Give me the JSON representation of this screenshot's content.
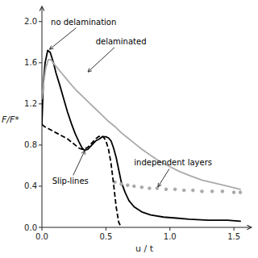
{
  "chart_data": {
    "type": "line",
    "title": "",
    "xlabel": "u / t",
    "ylabel": "F/F*",
    "xlim": [
      0.0,
      1.6
    ],
    "ylim": [
      0.0,
      2.1
    ],
    "xticks": [
      {
        "value": 0.0,
        "label": "0.0"
      },
      0.5,
      {
        "value": 1.0,
        "label": "1.0"
      },
      1.5
    ],
    "yticks": [
      {
        "value": 0.0,
        "label": "0.0"
      },
      0.4,
      0.8,
      1.2,
      1.6,
      {
        "value": 2.0,
        "label": "2.0"
      }
    ],
    "grid": false,
    "background": "#ffffff",
    "series": [
      {
        "color": "#000000",
        "line_style": "solid",
        "x": [
          0.0,
          0.01,
          0.025,
          0.045,
          0.065,
          0.09,
          0.11,
          0.14,
          0.17,
          0.2,
          0.23,
          0.26,
          0.29,
          0.31,
          0.33,
          0.36,
          0.39,
          0.42,
          0.45,
          0.47,
          0.5,
          0.52,
          0.54,
          0.56,
          0.58,
          0.6,
          0.62,
          0.65,
          0.68,
          0.72,
          0.78,
          0.85,
          0.95,
          1.05,
          1.15,
          1.3,
          1.45,
          1.55
        ],
        "values": [
          1.0,
          1.38,
          1.6,
          1.72,
          1.7,
          1.6,
          1.5,
          1.38,
          1.25,
          1.12,
          1.01,
          0.91,
          0.83,
          0.78,
          0.75,
          0.76,
          0.8,
          0.84,
          0.86,
          0.88,
          0.88,
          0.87,
          0.84,
          0.77,
          0.68,
          0.56,
          0.44,
          0.34,
          0.26,
          0.2,
          0.15,
          0.12,
          0.1,
          0.09,
          0.08,
          0.07,
          0.07,
          0.06
        ]
      },
      {
        "color": "#aaaaaa",
        "line_style": "solid",
        "x": [
          0.0,
          0.015,
          0.03,
          0.05,
          0.07,
          0.1,
          0.14,
          0.18,
          0.22,
          0.27,
          0.32,
          0.37,
          0.42,
          0.47,
          0.52,
          0.57,
          0.62,
          0.67,
          0.72,
          0.78,
          0.85,
          0.92,
          1.0,
          1.08,
          1.16,
          1.25,
          1.35,
          1.45,
          1.55
        ],
        "values": [
          1.25,
          1.42,
          1.55,
          1.63,
          1.63,
          1.58,
          1.52,
          1.46,
          1.4,
          1.33,
          1.27,
          1.21,
          1.15,
          1.09,
          1.03,
          0.98,
          0.92,
          0.87,
          0.82,
          0.76,
          0.7,
          0.64,
          0.59,
          0.54,
          0.5,
          0.46,
          0.43,
          0.4,
          0.37
        ]
      },
      {
        "color": "#aaaaaa",
        "line_style": "none",
        "marker": "o",
        "x": [
          0.57,
          0.62,
          0.67,
          0.72,
          0.78,
          0.84,
          0.9,
          0.97,
          1.04,
          1.11,
          1.18,
          1.25,
          1.33,
          1.41,
          1.5,
          1.55
        ],
        "values": [
          0.44,
          0.42,
          0.41,
          0.4,
          0.39,
          0.38,
          0.38,
          0.37,
          0.37,
          0.36,
          0.36,
          0.35,
          0.35,
          0.35,
          0.34,
          0.34
        ]
      },
      {
        "color": "#000000",
        "line_style": "dashed",
        "x": [
          0.0,
          0.02,
          0.05,
          0.08,
          0.11,
          0.14,
          0.17,
          0.2,
          0.23,
          0.26,
          0.29,
          0.31,
          0.33,
          0.36,
          0.39,
          0.42,
          0.44,
          0.46,
          0.48,
          0.5,
          0.52,
          0.54,
          0.56,
          0.58,
          0.6,
          0.62
        ],
        "values": [
          1.0,
          0.98,
          0.96,
          0.94,
          0.92,
          0.9,
          0.88,
          0.86,
          0.83,
          0.8,
          0.77,
          0.76,
          0.76,
          0.78,
          0.82,
          0.86,
          0.88,
          0.89,
          0.88,
          0.84,
          0.76,
          0.62,
          0.42,
          0.2,
          0.05,
          0.0
        ]
      }
    ],
    "annotations": [
      {
        "text": "no delamination",
        "x": 0.05,
        "y": 1.72,
        "text_x": 0.07,
        "text_y": 1.97
      },
      {
        "text": "delaminated",
        "x": 0.35,
        "y": 1.5,
        "text_x": 0.42,
        "text_y": 1.78
      },
      {
        "text": "independent layers",
        "x": 0.9,
        "y": 0.38,
        "text_x": 0.72,
        "text_y": 0.6
      },
      {
        "text": "Slip-lines",
        "x": 0.34,
        "y": 0.76,
        "text_x": 0.08,
        "text_y": 0.42
      }
    ]
  }
}
